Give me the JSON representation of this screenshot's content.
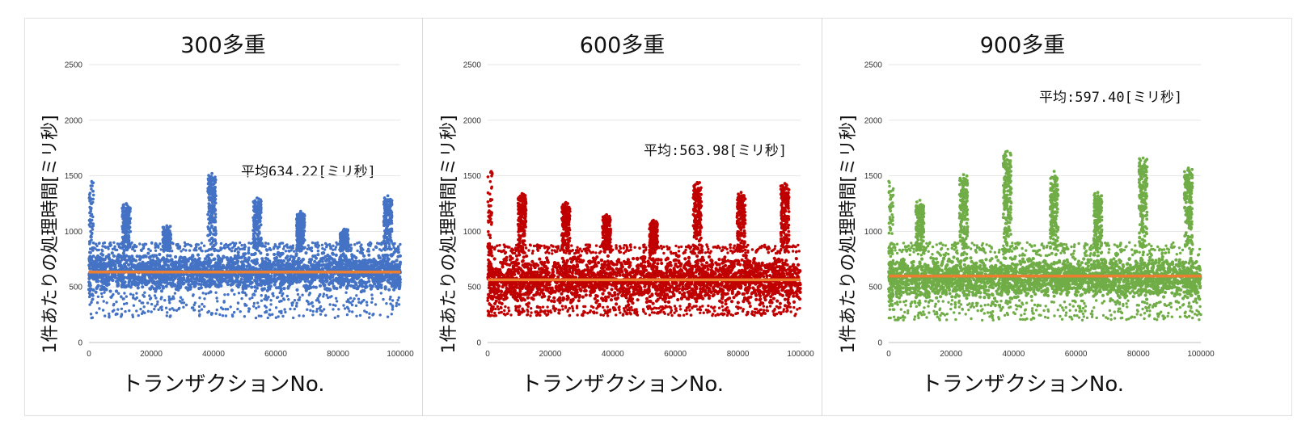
{
  "chart_data": [
    {
      "type": "scatter",
      "title": "300多重",
      "xlabel": "トランザクションNo.",
      "ylabel": "1件あたりの処理時間[ミリ秒]",
      "xlim": [
        0,
        100000
      ],
      "ylim": [
        0,
        2500
      ],
      "xticks": [
        "0",
        "20000",
        "40000",
        "60000",
        "80000",
        "100000"
      ],
      "yticks": [
        "0",
        "500",
        "1000",
        "1500",
        "2000",
        "2500"
      ],
      "grid": "horizontal",
      "annotation": "平均634.22[ミリ秒]",
      "mean": 634.22,
      "point_color": "#4472c4",
      "mean_color": "#ed7d31",
      "band": {
        "low": 450,
        "high": 820,
        "min": 220,
        "max": 900
      },
      "spikes": [
        {
          "x": 12000,
          "peak": 1250
        },
        {
          "x": 25000,
          "peak": 1050
        },
        {
          "x": 39500,
          "peak": 1520
        },
        {
          "x": 54000,
          "peak": 1300
        },
        {
          "x": 68000,
          "peak": 1180
        },
        {
          "x": 82000,
          "peak": 1020
        },
        {
          "x": 96000,
          "peak": 1320
        }
      ]
    },
    {
      "type": "scatter",
      "title": "600多重",
      "xlabel": "トランザクションNo.",
      "ylabel": "1件あたりの処理時間[ミリ秒]",
      "xlim": [
        0,
        100000
      ],
      "ylim": [
        0,
        2500
      ],
      "xticks": [
        "0",
        "20000",
        "40000",
        "60000",
        "80000",
        "100000"
      ],
      "yticks": [
        "0",
        "500",
        "1000",
        "1500",
        "2000",
        "2500"
      ],
      "grid": "horizontal",
      "annotation": "平均:563.98[ミリ秒]",
      "mean": 563.98,
      "point_color": "#c00000",
      "mean_color": "#ed7d31",
      "band": {
        "low": 330,
        "high": 800,
        "min": 240,
        "max": 880
      },
      "spikes": [
        {
          "x": 11000,
          "peak": 1340
        },
        {
          "x": 25000,
          "peak": 1260
        },
        {
          "x": 38000,
          "peak": 1150
        },
        {
          "x": 53000,
          "peak": 1100
        },
        {
          "x": 67000,
          "peak": 1440
        },
        {
          "x": 81000,
          "peak": 1350
        },
        {
          "x": 95000,
          "peak": 1430
        }
      ]
    },
    {
      "type": "scatter",
      "title": "900多重",
      "xlabel": "トランザクションNo.",
      "ylabel": "1件あたりの処理時間[ミリ秒]",
      "xlim": [
        0,
        100000
      ],
      "ylim": [
        0,
        2500
      ],
      "xticks": [
        "0",
        "20000",
        "40000",
        "60000",
        "80000",
        "100000"
      ],
      "yticks": [
        "0",
        "500",
        "1000",
        "1500",
        "2000",
        "2500"
      ],
      "grid": "horizontal",
      "annotation": "平均:597.40[ミリ秒]",
      "mean": 597.4,
      "point_color": "#70ad47",
      "mean_color": "#ed7d31",
      "band": {
        "low": 380,
        "high": 780,
        "min": 200,
        "max": 900
      },
      "spikes": [
        {
          "x": 10000,
          "peak": 1280
        },
        {
          "x": 24000,
          "peak": 1510
        },
        {
          "x": 38000,
          "peak": 1720
        },
        {
          "x": 53000,
          "peak": 1540
        },
        {
          "x": 67000,
          "peak": 1350
        },
        {
          "x": 81500,
          "peak": 1660
        },
        {
          "x": 96000,
          "peak": 1570
        }
      ]
    }
  ]
}
